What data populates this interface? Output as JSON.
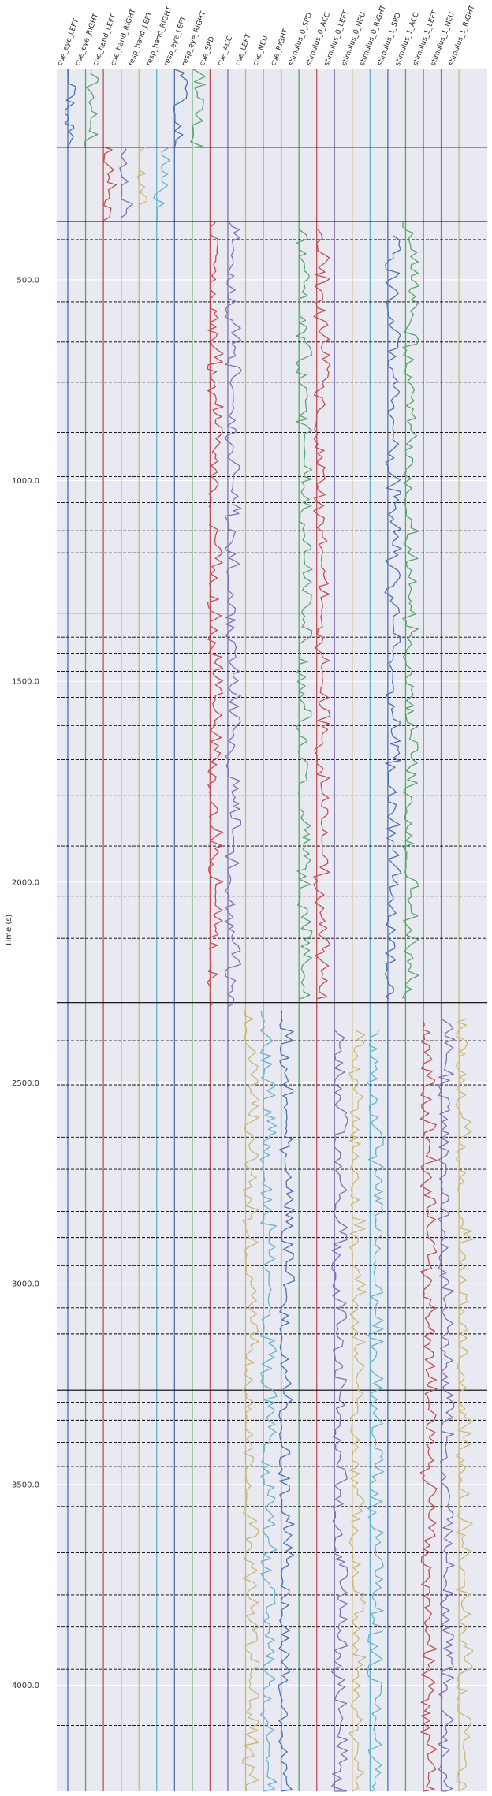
{
  "chart_data": {
    "type": "line",
    "title": "",
    "xlabel": "",
    "ylabel": "Time (s)",
    "ylim": [
      4264,
      -24
    ],
    "y_ticks": [
      500,
      1000,
      1500,
      2000,
      2500,
      3000,
      3500,
      4000
    ],
    "y_tick_labels": [
      "500.0",
      "1000.0",
      "1500.0",
      "2000.0",
      "2500.0",
      "3000.0",
      "3500.0",
      "4000.0"
    ],
    "grid": true,
    "background": "#e9e9f1",
    "columns": [
      {
        "name": "cue_eye_LEFT",
        "color": "#4c72b0"
      },
      {
        "name": "cue_eye_RIGHT",
        "color": "#55a868"
      },
      {
        "name": "cue_hand_LEFT",
        "color": "#c44e52"
      },
      {
        "name": "cue_hand_RIGHT",
        "color": "#8172b2"
      },
      {
        "name": "resp_hand_LEFT",
        "color": "#ccb974"
      },
      {
        "name": "resp_hand_RIGHT",
        "color": "#64b5cd"
      },
      {
        "name": "resp_eye_LEFT",
        "color": "#4c72b0"
      },
      {
        "name": "resp_eye_RIGHT",
        "color": "#55a868"
      },
      {
        "name": "cue_SPD",
        "color": "#c44e52"
      },
      {
        "name": "cue_ACC",
        "color": "#8172b2"
      },
      {
        "name": "cue_LEFT",
        "color": "#ccb974"
      },
      {
        "name": "cue_NEU",
        "color": "#64b5cd"
      },
      {
        "name": "cue_RIGHT",
        "color": "#4c72b0"
      },
      {
        "name": "stimulus_0_SPD",
        "color": "#55a868"
      },
      {
        "name": "stimulus_0_ACC",
        "color": "#c44e52"
      },
      {
        "name": "stimulus_0_LEFT",
        "color": "#8172b2"
      },
      {
        "name": "stimulus_0_NEU",
        "color": "#ccb974"
      },
      {
        "name": "stimulus_0_RIGHT",
        "color": "#64b5cd"
      },
      {
        "name": "stimulus_1_SPD",
        "color": "#4c72b0"
      },
      {
        "name": "stimulus_1_ACC",
        "color": "#55a868"
      },
      {
        "name": "stimulus_1_LEFT",
        "color": "#c44e52"
      },
      {
        "name": "stimulus_1_NEU",
        "color": "#8172b2"
      },
      {
        "name": "stimulus_1_RIGHT",
        "color": "#ccb974"
      }
    ],
    "segments": [
      {
        "column": "cue_eye_LEFT",
        "start": -24,
        "end": 170
      },
      {
        "column": "cue_eye_RIGHT",
        "start": -24,
        "end": 170
      },
      {
        "column": "resp_eye_LEFT",
        "start": -24,
        "end": 170
      },
      {
        "column": "resp_eye_RIGHT",
        "start": -24,
        "end": 170
      },
      {
        "column": "cue_hand_LEFT",
        "start": 170,
        "end": 352
      },
      {
        "column": "cue_hand_RIGHT",
        "start": 170,
        "end": 352
      },
      {
        "column": "resp_hand_LEFT",
        "start": 170,
        "end": 352
      },
      {
        "column": "resp_hand_RIGHT",
        "start": 170,
        "end": 352
      },
      {
        "column": "cue_SPD",
        "start": 355,
        "end": 2310
      },
      {
        "column": "cue_ACC",
        "start": 355,
        "end": 2310
      },
      {
        "column": "stimulus_0_SPD",
        "start": 375,
        "end": 2290
      },
      {
        "column": "stimulus_0_ACC",
        "start": 375,
        "end": 2290
      },
      {
        "column": "stimulus_1_SPD",
        "start": 390,
        "end": 2290
      },
      {
        "column": "stimulus_1_ACC",
        "start": 355,
        "end": 2290
      },
      {
        "column": "cue_LEFT",
        "start": 2320,
        "end": 4264
      },
      {
        "column": "cue_NEU",
        "start": 2320,
        "end": 4264
      },
      {
        "column": "cue_RIGHT",
        "start": 2320,
        "end": 4264
      },
      {
        "column": "stimulus_0_LEFT",
        "start": 2370,
        "end": 4264
      },
      {
        "column": "stimulus_0_NEU",
        "start": 2370,
        "end": 4264
      },
      {
        "column": "stimulus_0_RIGHT",
        "start": 2370,
        "end": 4264
      },
      {
        "column": "stimulus_1_LEFT",
        "start": 2340,
        "end": 4264
      },
      {
        "column": "stimulus_1_NEU",
        "start": 2340,
        "end": 4264
      },
      {
        "column": "stimulus_1_RIGHT",
        "start": 2340,
        "end": 4264
      }
    ],
    "run_boundaries": [
      170,
      355,
      1330,
      2300,
      3265
    ],
    "trial_markers": [
      400,
      555,
      655,
      755,
      880,
      990,
      1055,
      1125,
      1180,
      1390,
      1430,
      1475,
      1540,
      1610,
      1695,
      1785,
      1910,
      2035,
      2140,
      2395,
      2505,
      2635,
      2715,
      2820,
      2885,
      2955,
      3060,
      3125,
      3295,
      3340,
      3395,
      3455,
      3555,
      3670,
      3775,
      3855,
      3960,
      4100
    ]
  }
}
